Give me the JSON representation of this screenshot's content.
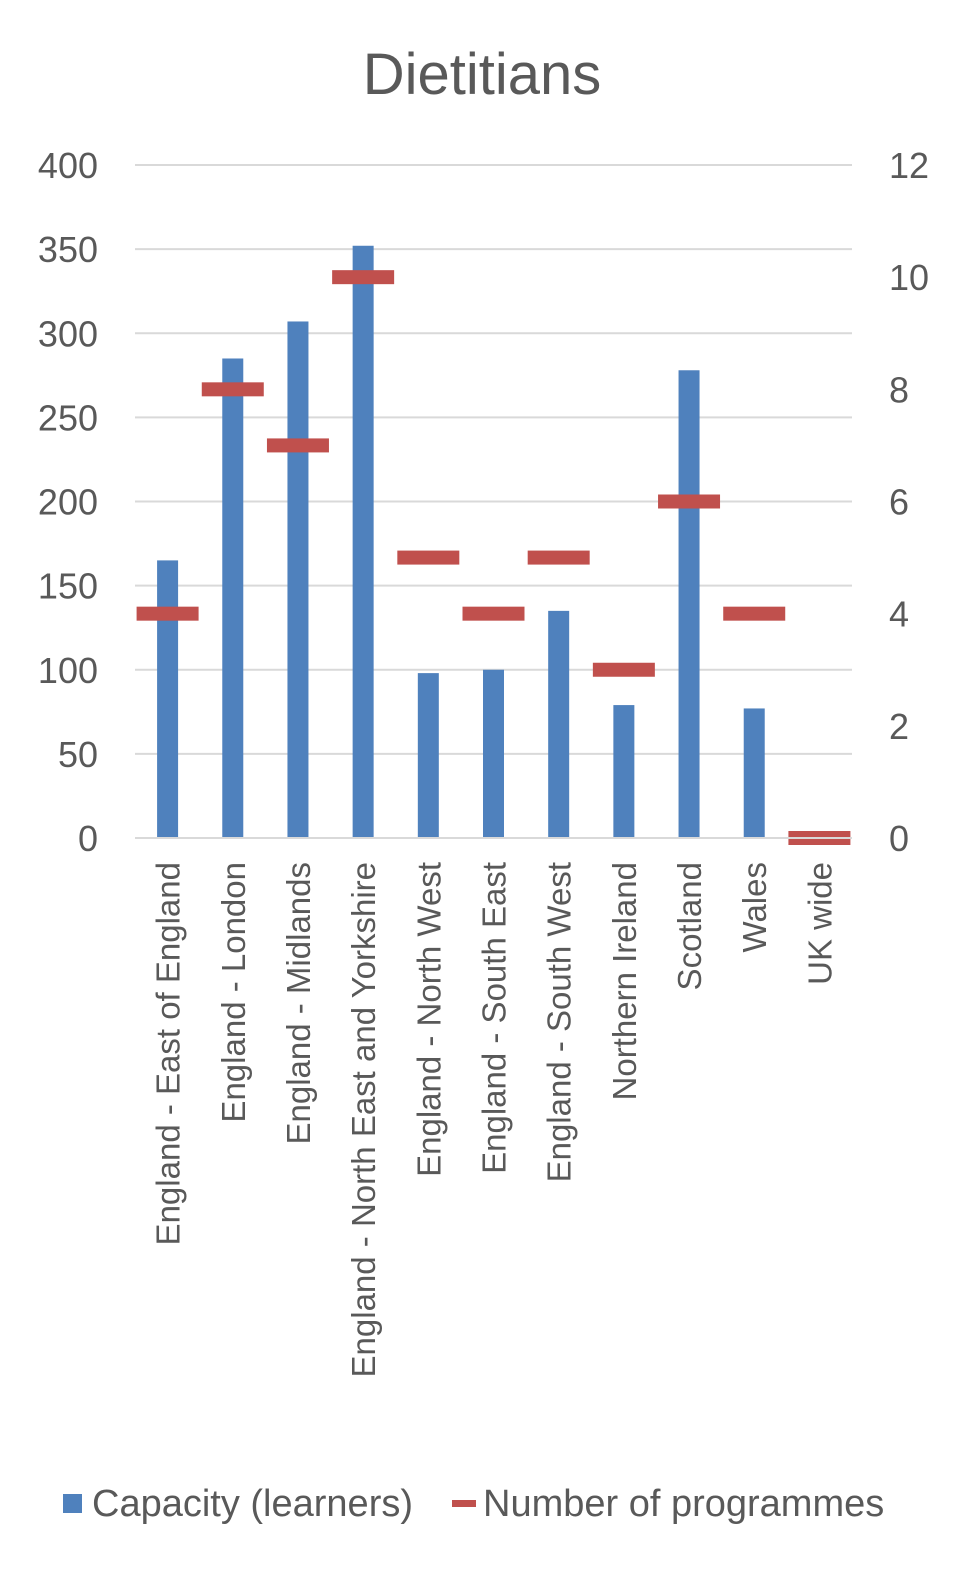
{
  "chart_data": {
    "type": "bar",
    "title": "Dietitians",
    "categories": [
      "England - East of England",
      "England - London",
      "England - Midlands",
      "England - North East and Yorkshire",
      "England - North West",
      "England - South East",
      "England - South West",
      "Northern Ireland",
      "Scotland",
      "Wales",
      "UK wide"
    ],
    "series": [
      {
        "name": "Capacity (learners)",
        "type": "bar",
        "axis": "left",
        "color": "#4F81BD",
        "values": [
          165,
          285,
          307,
          352,
          98,
          100,
          135,
          79,
          278,
          77,
          0
        ]
      },
      {
        "name": "Number of programmes",
        "type": "marker-dash",
        "axis": "right",
        "color": "#C0504D",
        "values": [
          4,
          8,
          7,
          10,
          5,
          4,
          5,
          3,
          6,
          4,
          0
        ]
      }
    ],
    "left_axis": {
      "ylim": [
        0,
        400
      ],
      "ticks": [
        "0",
        "50",
        "100",
        "150",
        "200",
        "250",
        "300",
        "350",
        "400"
      ]
    },
    "right_axis": {
      "ylim": [
        0,
        12
      ],
      "ticks": [
        "0",
        "2",
        "4",
        "6",
        "8",
        "10",
        "12"
      ]
    },
    "grid": true,
    "legend": "bottom"
  }
}
